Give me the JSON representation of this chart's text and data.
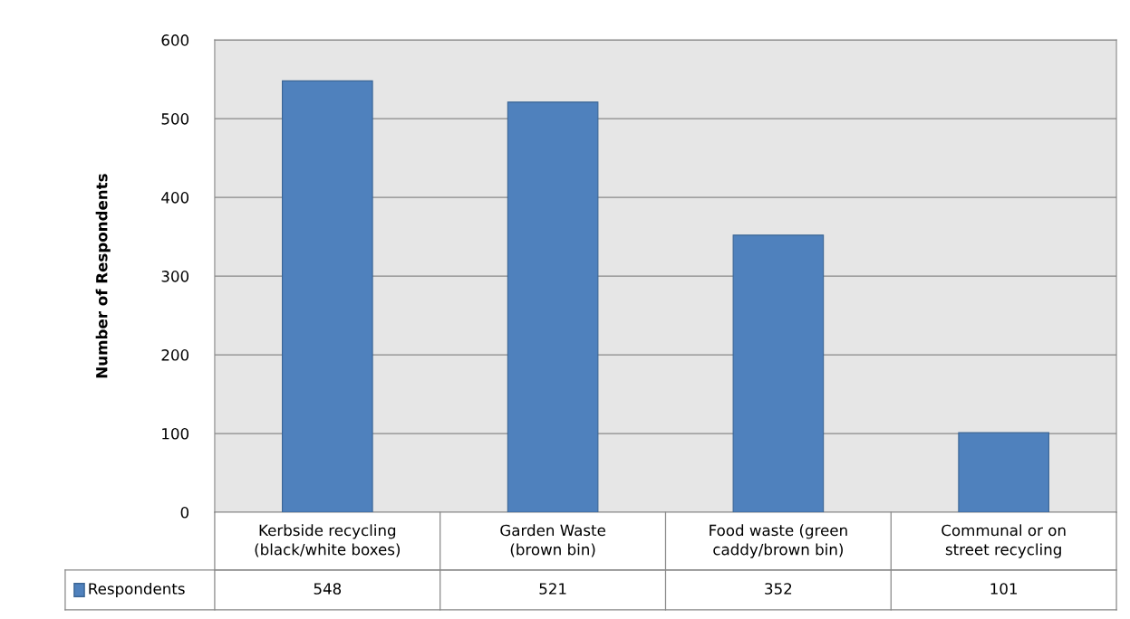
{
  "chart_data": {
    "type": "bar",
    "ylabel": "Number of Respondents",
    "categories": [
      "Kerbside recycling\n(black/white boxes)",
      "Garden Waste\n(brown bin)",
      "Food waste (green\ncaddy/brown bin)",
      "Communal or on\nstreet recycling"
    ],
    "series": [
      {
        "name": "Respondents",
        "color": "#4f81bd",
        "values": [
          548,
          521,
          352,
          101
        ]
      }
    ],
    "ylim": [
      0,
      600
    ],
    "yticks": [
      0,
      100,
      200,
      300,
      400,
      500,
      600
    ],
    "grid": "y",
    "data_labels": true,
    "legend": "bottom"
  }
}
